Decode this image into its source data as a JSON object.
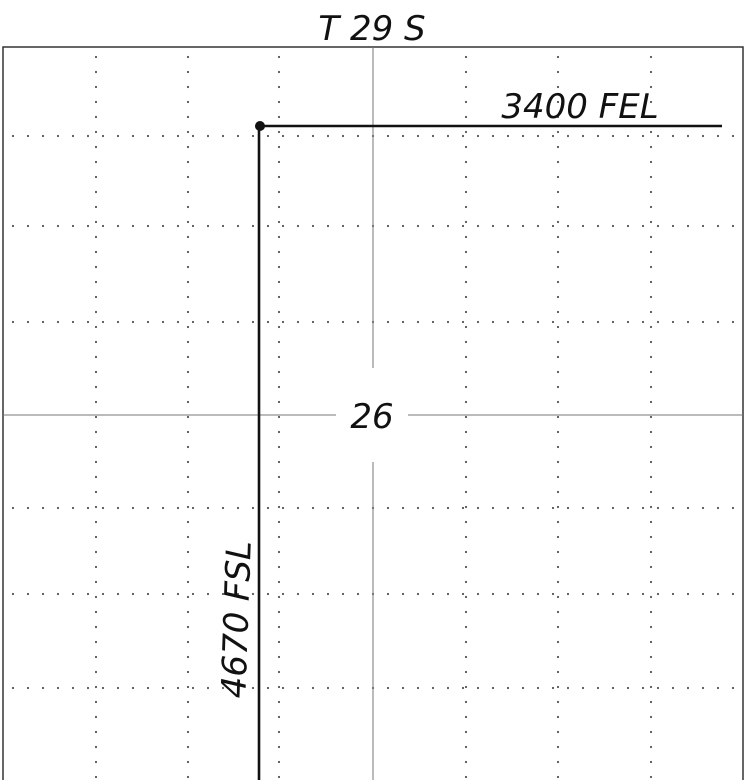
{
  "township_label": "T 29 S",
  "section_number": "26",
  "well_location": {
    "from_east_line": "3400 FEL",
    "from_south_line": "4670 FSL"
  },
  "colors": {
    "ink": "#111111",
    "border": "#333333",
    "grid_dots": "#555555",
    "center_lines": "#777777"
  }
}
